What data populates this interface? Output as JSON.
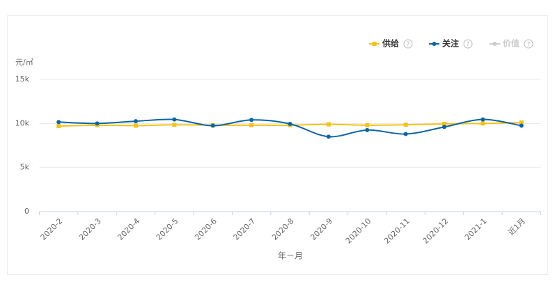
{
  "chart_data": {
    "type": "line",
    "y_axis_label": "元/㎡",
    "x_axis_label": "年－月",
    "categories": [
      "2020-2",
      "2020-3",
      "2020-4",
      "2020-5",
      "2020-6",
      "2020-7",
      "2020-8",
      "2020-9",
      "2020-10",
      "2020-11",
      "2020-12",
      "2021-1",
      "近1月"
    ],
    "series": [
      {
        "name": "供给",
        "color": "#f5c21b",
        "marker": "square",
        "enabled": true,
        "values": [
          9700,
          9800,
          9750,
          9850,
          9800,
          9800,
          9800,
          9900,
          9800,
          9850,
          9950,
          10000,
          10100
        ]
      },
      {
        "name": "关注",
        "color": "#0b64a6",
        "marker": "circle",
        "enabled": true,
        "values": [
          10150,
          10000,
          10250,
          10450,
          9750,
          10400,
          9950,
          8500,
          9250,
          8800,
          9600,
          10450,
          9750
        ]
      },
      {
        "name": "价值",
        "color": "#cccccc",
        "marker": "circle",
        "enabled": false,
        "values": [
          null,
          null,
          null,
          null,
          null,
          null,
          null,
          null,
          null,
          null,
          null,
          null,
          null
        ]
      }
    ],
    "legend_help": "?",
    "ylim": [
      0,
      15000
    ],
    "yticks": [
      0,
      {
        "value": 5000,
        "label": "5k"
      },
      {
        "value": 10000,
        "label": "10k"
      },
      {
        "value": 15000,
        "label": "15k"
      }
    ],
    "grid": true,
    "smooth": true,
    "legend_position": "top-right"
  }
}
